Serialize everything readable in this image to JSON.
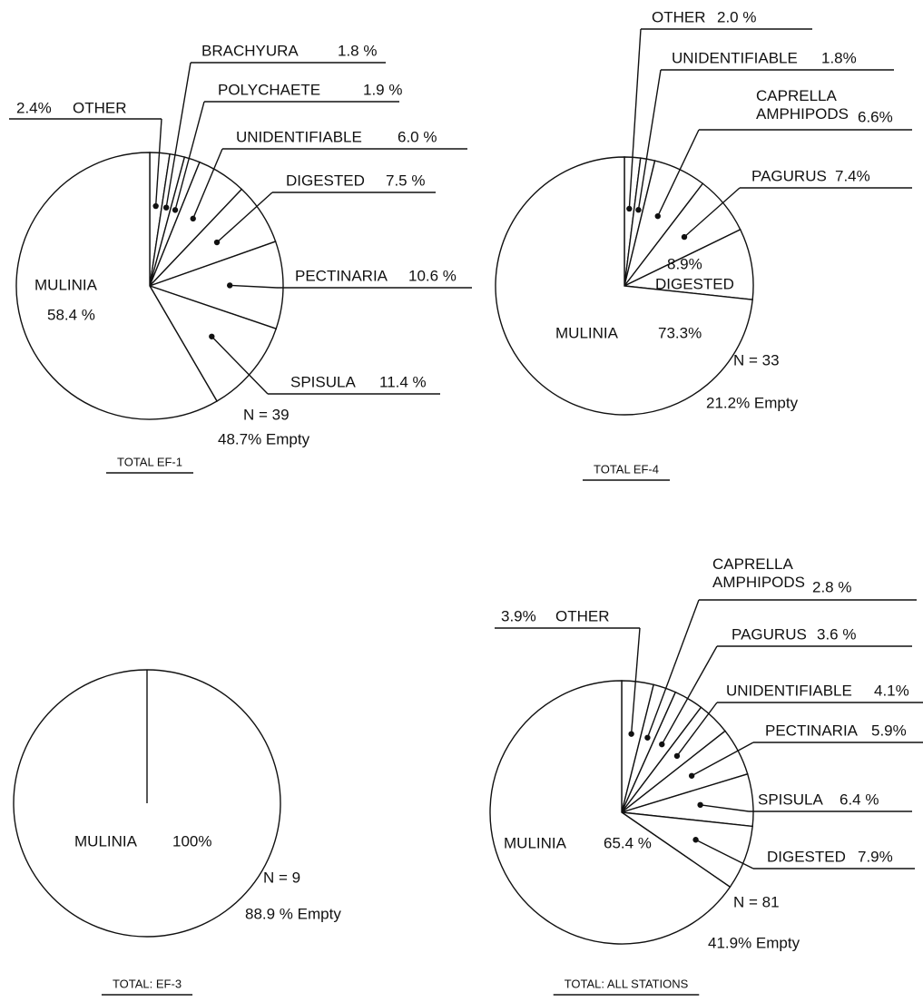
{
  "chart_data": [
    {
      "type": "pie",
      "title": "TOTAL EF-1",
      "color": "#ffffff",
      "categories": [
        "OTHER",
        "BRACHYURA",
        "POLYCHAETE",
        "UNIDENTIFIABLE",
        "DIGESTED",
        "PECTINARIA",
        "SPISULA",
        "MULINIA"
      ],
      "values": [
        2.4,
        1.8,
        1.9,
        6.0,
        7.5,
        10.6,
        11.4,
        58.4
      ],
      "value_labels": [
        "2.4%",
        "1.8 %",
        "1.9 %",
        "6.0 %",
        "7.5 %",
        "10.6 %",
        "11.4 %",
        "58.4 %"
      ],
      "annotations": [
        "N = 39",
        "48.7% Empty"
      ]
    },
    {
      "type": "pie",
      "title": "TOTAL EF-4",
      "color": "#ffffff",
      "categories": [
        "OTHER",
        "UNIDENTIFIABLE",
        "CAPRELLA AMPHIPODS",
        "PAGURUS",
        "DIGESTED",
        "MULINIA"
      ],
      "values": [
        2.0,
        1.8,
        6.6,
        7.4,
        8.9,
        73.3
      ],
      "value_labels": [
        "2.0 %",
        "1.8%",
        "6.6%",
        "7.4%",
        "8.9%",
        "73.3%"
      ],
      "annotations": [
        "N = 33",
        "21.2% Empty"
      ]
    },
    {
      "type": "pie",
      "title": "TOTAL: EF-3",
      "color": "#ffffff",
      "categories": [
        "MULINIA"
      ],
      "values": [
        100
      ],
      "value_labels": [
        "100%"
      ],
      "annotations": [
        "N = 9",
        "88.9 % Empty"
      ]
    },
    {
      "type": "pie",
      "title": "TOTAL: ALL STATIONS",
      "color": "#ffffff",
      "categories": [
        "OTHER",
        "CAPRELLA AMPHIPODS",
        "PAGURUS",
        "UNIDENTIFIABLE",
        "PECTINARIA",
        "SPISULA",
        "DIGESTED",
        "MULINIA"
      ],
      "values": [
        3.9,
        2.8,
        3.6,
        4.1,
        5.9,
        6.4,
        7.9,
        65.4
      ],
      "value_labels": [
        "3.9%",
        "2.8 %",
        "3.6 %",
        "4.1%",
        "5.9%",
        "6.4 %",
        "7.9%",
        "65.4 %"
      ],
      "annotations": [
        "N = 81",
        "41.9% Empty"
      ]
    }
  ]
}
